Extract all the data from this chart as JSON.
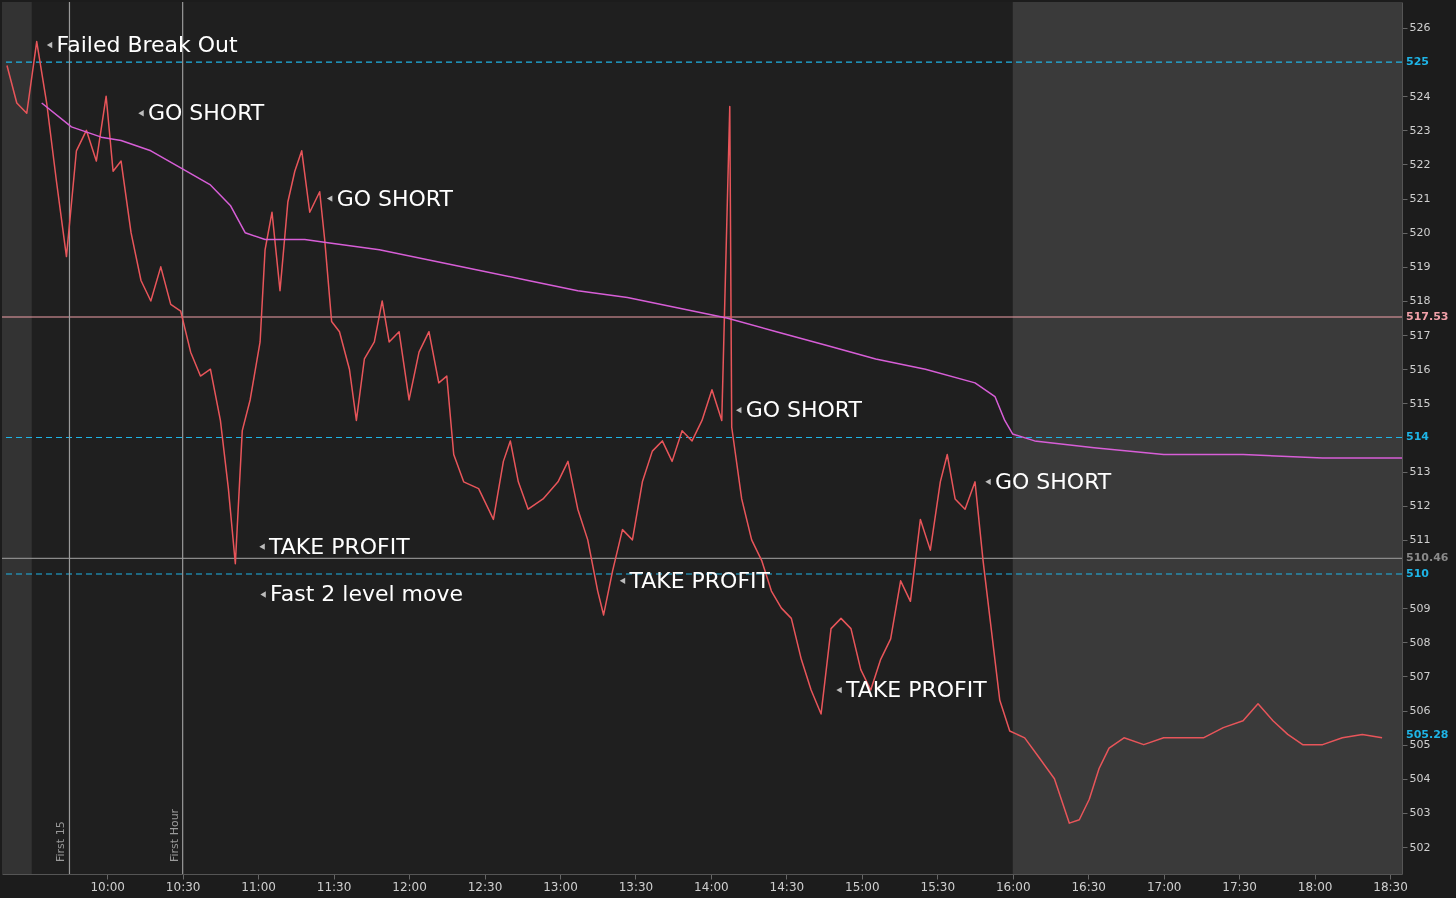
{
  "chart_data": {
    "type": "line",
    "xlim": [
      9.303,
      18.579
    ],
    "ylim": [
      501.21,
      526.76
    ],
    "xticks": [
      {
        "value": 10,
        "label": "10:00"
      },
      {
        "value": 10.5,
        "label": "10:30"
      },
      {
        "value": 11,
        "label": "11:00"
      },
      {
        "value": 11.5,
        "label": "11:30"
      },
      {
        "value": 12,
        "label": "12:00"
      },
      {
        "value": 12.5,
        "label": "12:30"
      },
      {
        "value": 13,
        "label": "13:00"
      },
      {
        "value": 13.5,
        "label": "13:30"
      },
      {
        "value": 14,
        "label": "14:00"
      },
      {
        "value": 14.5,
        "label": "14:30"
      },
      {
        "value": 15,
        "label": "15:00"
      },
      {
        "value": 15.5,
        "label": "15:30"
      },
      {
        "value": 16,
        "label": "16:00"
      },
      {
        "value": 16.5,
        "label": "16:30"
      },
      {
        "value": 17,
        "label": "17:00"
      },
      {
        "value": 17.5,
        "label": "17:30"
      },
      {
        "value": 18,
        "label": "18:00"
      },
      {
        "value": 18.5,
        "label": "18:30"
      }
    ],
    "yticks": [
      502,
      503,
      504,
      505,
      506,
      507,
      508,
      509,
      511,
      512,
      513,
      515,
      516,
      517,
      518,
      519,
      520,
      521,
      522,
      523,
      524,
      526
    ],
    "series": [
      {
        "color": "#e8555a",
        "x": [
          9.336,
          9.401,
          9.467,
          9.533,
          9.599,
          9.664,
          9.73,
          9.796,
          9.862,
          9.928,
          9.993,
          10.039,
          10.092,
          10.158,
          10.224,
          10.289,
          10.355,
          10.421,
          10.487,
          10.553,
          10.618,
          10.684,
          10.75,
          10.803,
          10.849,
          10.895,
          10.947,
          11.013,
          11.046,
          11.092,
          11.145,
          11.197,
          11.243,
          11.289,
          11.342,
          11.408,
          11.441,
          11.487,
          11.539,
          11.605,
          11.651,
          11.704,
          11.77,
          11.822,
          11.868,
          11.934,
          12.0,
          12.066,
          12.132,
          12.197,
          12.25,
          12.296,
          12.362,
          12.461,
          12.559,
          12.625,
          12.671,
          12.724,
          12.789,
          12.888,
          12.987,
          13.053,
          13.118,
          13.184,
          13.25,
          13.289,
          13.349,
          13.414,
          13.48,
          13.546,
          13.612,
          13.678,
          13.743,
          13.809,
          13.875,
          13.941,
          14.007,
          14.072,
          14.125,
          14.138,
          14.204,
          14.27,
          14.336,
          14.401,
          14.467,
          14.533,
          14.599,
          14.664,
          14.73,
          14.796,
          14.862,
          14.928,
          14.993,
          15.059,
          15.125,
          15.191,
          15.257,
          15.322,
          15.388,
          15.454,
          15.52,
          15.566,
          15.618,
          15.684,
          15.75,
          15.803,
          15.849,
          15.914,
          15.98,
          16.079,
          16.178,
          16.276,
          16.375,
          16.441,
          16.507,
          16.572,
          16.638,
          16.737,
          16.868,
          17.0,
          17.132,
          17.263,
          17.395,
          17.526,
          17.625,
          17.724,
          17.822,
          17.921,
          18.053,
          18.184,
          18.316,
          18.447
        ],
        "values": [
          524.9,
          523.8,
          523.5,
          525.6,
          523.8,
          521.5,
          519.3,
          522.4,
          523.0,
          522.1,
          524.0,
          521.8,
          522.1,
          520.0,
          518.6,
          518.0,
          519.0,
          517.9,
          517.7,
          516.5,
          515.8,
          516.0,
          514.5,
          512.5,
          510.3,
          514.2,
          515.1,
          516.8,
          519.5,
          520.6,
          518.3,
          520.9,
          521.8,
          522.4,
          520.6,
          521.2,
          519.8,
          517.4,
          517.1,
          516.0,
          514.5,
          516.3,
          516.8,
          518.0,
          516.8,
          517.1,
          515.1,
          516.5,
          517.1,
          515.6,
          515.8,
          513.5,
          512.7,
          512.5,
          511.6,
          513.3,
          513.9,
          512.7,
          511.9,
          512.2,
          512.7,
          513.3,
          511.9,
          511.0,
          509.5,
          508.8,
          510.1,
          511.3,
          511.0,
          512.7,
          513.6,
          513.9,
          513.3,
          514.2,
          513.9,
          514.5,
          515.4,
          514.5,
          523.7,
          514.3,
          512.2,
          511.0,
          510.4,
          509.5,
          509.0,
          508.7,
          507.5,
          506.6,
          505.9,
          508.4,
          508.7,
          508.4,
          507.2,
          506.6,
          507.5,
          508.1,
          509.8,
          509.2,
          511.6,
          510.7,
          512.7,
          513.5,
          512.2,
          511.9,
          512.7,
          510.4,
          508.7,
          506.3,
          505.4,
          505.2,
          504.6,
          504.0,
          502.7,
          502.8,
          503.4,
          504.3,
          504.9,
          505.2,
          505.0,
          505.2,
          505.2,
          505.2,
          505.5,
          505.7,
          506.2,
          505.7,
          505.3,
          505.0,
          505.0,
          505.2,
          505.3,
          505.2
        ]
      },
      {
        "color": "#d75ed7",
        "x": [
          9.566,
          9.763,
          9.961,
          10.092,
          10.289,
          10.487,
          10.684,
          10.816,
          10.914,
          11.046,
          11.178,
          11.309,
          11.474,
          11.803,
          12.132,
          12.461,
          12.789,
          13.118,
          13.447,
          13.776,
          14.105,
          14.434,
          14.763,
          15.092,
          15.421,
          15.75,
          15.882,
          15.947,
          16.0,
          16.145,
          16.539,
          17.0,
          17.526,
          18.053,
          18.579
        ],
        "values": [
          523.8,
          523.1,
          522.8,
          522.7,
          522.4,
          521.9,
          521.4,
          520.8,
          520.0,
          519.8,
          519.8,
          519.8,
          519.7,
          519.5,
          519.2,
          518.9,
          518.6,
          518.3,
          518.1,
          517.8,
          517.5,
          517.1,
          516.7,
          516.3,
          516.0,
          515.6,
          515.2,
          514.5,
          514.1,
          513.9,
          513.7,
          513.5,
          513.5,
          513.4,
          513.4
        ]
      }
    ],
    "ref_lines": [
      {
        "axis": "y",
        "value": 525,
        "label": "525",
        "color": "#1eb4e6",
        "line_style": "dashed"
      },
      {
        "axis": "y",
        "value": 514,
        "label": "514",
        "color": "#1eb4e6",
        "line_style": "dashed"
      },
      {
        "axis": "y",
        "value": 510,
        "label": "510",
        "color": "#1eb4e6",
        "line_style": "dashed"
      },
      {
        "axis": "y",
        "value": 517.53,
        "label": "517.53",
        "color": "#f0a0a8",
        "line_style": "solid"
      },
      {
        "axis": "y",
        "value": 510.46,
        "label": "510.46",
        "color": "#8a8a8a",
        "line_style": "solid"
      },
      {
        "axis": "x",
        "value": 9.75,
        "label": "First 15",
        "color": "#9a9a9a",
        "line_style": "solid"
      },
      {
        "axis": "x",
        "value": 10.5,
        "label": "First Hour",
        "color": "#9a9a9a",
        "line_style": "solid"
      }
    ],
    "bands": [
      {
        "axis": "x",
        "from": 9.303,
        "to": 9.5,
        "color": "#333333"
      },
      {
        "axis": "x",
        "from": 16,
        "to": 18.579,
        "color": "#3a3a3a"
      }
    ],
    "annotations": [
      {
        "text": "Failed Break Out",
        "x": 9.618,
        "y": 525.5
      },
      {
        "text": "GO SHORT",
        "x": 10.224,
        "y": 523.5
      },
      {
        "text": "GO SHORT",
        "x": 11.474,
        "y": 521.0
      },
      {
        "text": "TAKE PROFIT",
        "x": 11.026,
        "y": 510.8
      },
      {
        "text": "Fast 2 level move",
        "x": 11.033,
        "y": 509.4
      },
      {
        "text": "TAKE PROFIT",
        "x": 13.414,
        "y": 509.8
      },
      {
        "text": "GO SHORT",
        "x": 14.184,
        "y": 514.8
      },
      {
        "text": "TAKE PROFIT",
        "x": 14.849,
        "y": 506.6
      },
      {
        "text": "GO SHORT",
        "x": 15.836,
        "y": 512.7
      },
      {
        "text": "505.28",
        "x": 18.579,
        "y": 505.28
      }
    ]
  }
}
